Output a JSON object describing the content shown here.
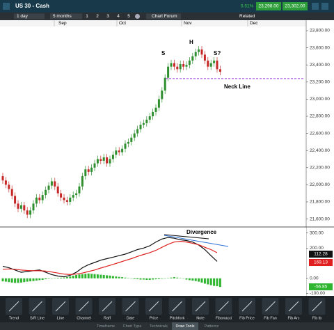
{
  "header": {
    "title": "US 30 - Cash",
    "change": "5.51%",
    "sell": "23,298.00",
    "buy": "23,302.00"
  },
  "toolbar": {
    "interval": "1 day",
    "range": "5 months",
    "layouts": [
      "1",
      "2",
      "3",
      "4",
      "5"
    ],
    "forum": "Chart Forum",
    "related": "Related"
  },
  "months": [
    "Sep",
    "Oct",
    "Nov",
    "Dec"
  ],
  "price_chart": {
    "type": "candlestick",
    "open": [
      22100,
      22050,
      22000,
      21950,
      21870,
      21780,
      21720,
      21760,
      21700,
      21650,
      21700,
      21780,
      21850,
      21820,
      21880,
      21940,
      21990,
      22040,
      21980,
      21900,
      21850,
      21820,
      21800,
      21850,
      21880,
      21900,
      21980,
      22100,
      22180,
      22150,
      22200,
      22250,
      22300,
      22280,
      22320,
      22250,
      22300,
      22350,
      22400,
      22380,
      22420,
      22480,
      22500,
      22550,
      22600,
      22650,
      22700,
      22720,
      22760,
      22800,
      22850,
      22900,
      23000,
      23100,
      23250,
      23380,
      23420,
      23380,
      23350,
      23410,
      23380,
      23400,
      23450,
      23500,
      23550,
      23580,
      23520,
      23450,
      23380,
      23420,
      23450,
      23350
    ],
    "high": [
      22140,
      22090,
      22040,
      21990,
      21910,
      21820,
      21800,
      21800,
      21740,
      21740,
      21820,
      21890,
      21890,
      21920,
      21980,
      22030,
      22080,
      22080,
      22020,
      21940,
      21890,
      21860,
      21890,
      21920,
      21940,
      22020,
      22140,
      22220,
      22220,
      22240,
      22290,
      22340,
      22340,
      22360,
      22360,
      22340,
      22390,
      22440,
      22440,
      22460,
      22520,
      22540,
      22590,
      22640,
      22690,
      22740,
      22760,
      22800,
      22840,
      22890,
      22940,
      23040,
      23140,
      23290,
      23420,
      23460,
      23460,
      23420,
      23450,
      23450,
      23440,
      23490,
      23540,
      23590,
      23620,
      23620,
      23560,
      23490,
      23460,
      23490,
      23490,
      23390
    ],
    "low": [
      22010,
      21960,
      21910,
      21830,
      21740,
      21680,
      21680,
      21660,
      21610,
      21610,
      21660,
      21740,
      21780,
      21780,
      21840,
      21900,
      21950,
      21940,
      21860,
      21810,
      21780,
      21760,
      21760,
      21810,
      21840,
      21860,
      21940,
      22060,
      22110,
      22110,
      22160,
      22210,
      22240,
      22240,
      22210,
      22210,
      22260,
      22310,
      22340,
      22340,
      22380,
      22440,
      22460,
      22510,
      22560,
      22610,
      22660,
      22680,
      22720,
      22760,
      22810,
      22860,
      22960,
      23060,
      23210,
      23340,
      23340,
      23310,
      23310,
      23340,
      23340,
      23360,
      23410,
      23460,
      23510,
      23480,
      23410,
      23340,
      23340,
      23380,
      23310,
      23280
    ],
    "close": [
      22050,
      22000,
      21950,
      21870,
      21780,
      21720,
      21760,
      21700,
      21650,
      21700,
      21780,
      21850,
      21820,
      21880,
      21940,
      21990,
      22040,
      21980,
      21900,
      21850,
      21820,
      21800,
      21850,
      21880,
      21900,
      21980,
      22100,
      22180,
      22150,
      22200,
      22250,
      22300,
      22280,
      22320,
      22250,
      22300,
      22350,
      22400,
      22380,
      22420,
      22480,
      22500,
      22550,
      22600,
      22650,
      22700,
      22720,
      22760,
      22800,
      22850,
      22900,
      23000,
      23100,
      23250,
      23380,
      23420,
      23380,
      23350,
      23410,
      23380,
      23400,
      23450,
      23500,
      23550,
      23580,
      23520,
      23450,
      23380,
      23420,
      23450,
      23350,
      23320
    ],
    "up_color": "#2f8f2f",
    "down_color": "#c62828",
    "ylim": [
      21515,
      23849
    ],
    "yticks": [
      {
        "value": 23800,
        "label": "23,800.00"
      },
      {
        "value": 23600,
        "label": "23,600.00"
      },
      {
        "value": 23400,
        "label": "23,400.00"
      },
      {
        "value": 23200,
        "label": "23,200.00"
      },
      {
        "value": 23000,
        "label": "23,000.00"
      },
      {
        "value": 22800,
        "label": "22,800.00"
      },
      {
        "value": 22600,
        "label": "22,600.00"
      },
      {
        "value": 22400,
        "label": "22,400.00"
      },
      {
        "value": 22200,
        "label": "22,200.00"
      },
      {
        "value": 22000,
        "label": "22,000.00"
      },
      {
        "value": 21800,
        "label": "21,800.00"
      },
      {
        "value": 21600,
        "label": "21,600.00"
      }
    ],
    "neck_level": 23240,
    "neck_color": "#9b30d9",
    "neck_label": "Neck Line",
    "annotations": [
      "S",
      "H",
      "S?"
    ]
  },
  "indicator": {
    "title": "Divergence",
    "ylim": [
      -116,
      335
    ],
    "yticks": [
      {
        "value": 300,
        "label": "300.00"
      },
      {
        "value": 200,
        "label": "200.00"
      },
      {
        "value": 0,
        "label": "0.00"
      },
      {
        "value": -100,
        "label": "-100.00"
      }
    ],
    "series": [
      {
        "color": "#111111",
        "values": [
          80,
          70,
          55,
          40,
          45,
          50,
          55,
          40,
          25,
          15,
          10,
          20,
          40,
          70,
          90,
          105,
          120,
          130,
          140,
          150,
          160,
          175,
          190,
          200,
          215,
          240,
          260,
          270,
          265,
          255,
          250,
          240,
          220,
          190,
          150,
          112.28
        ]
      },
      {
        "color": "#e02020",
        "values": [
          60,
          62,
          60,
          55,
          52,
          50,
          50,
          48,
          42,
          35,
          28,
          25,
          28,
          35,
          45,
          55,
          68,
          80,
          92,
          105,
          118,
          130,
          145,
          158,
          170,
          185,
          205,
          225,
          240,
          245,
          240,
          232,
          222,
          205,
          190,
          169.13
        ]
      }
    ],
    "histogram": {
      "color": "#2fb52f",
      "values": [
        -20,
        -22,
        -25,
        -28,
        -30,
        -30,
        -28,
        -25,
        -22,
        -20,
        -18,
        -15,
        -12,
        -10,
        -6,
        -3,
        -2,
        2,
        3,
        4,
        5,
        8,
        12,
        18,
        22,
        26,
        28,
        30,
        32,
        30,
        28,
        26,
        24,
        22,
        20,
        18,
        15,
        12,
        10,
        8,
        5,
        2,
        -2,
        -5,
        -6,
        -8,
        -8,
        -10,
        -10,
        -8,
        -6,
        -5,
        -3,
        -2,
        2,
        5,
        8,
        5,
        2,
        -2,
        -8,
        -12,
        -15,
        -18,
        -22,
        -28,
        -35,
        -40,
        -45,
        -50,
        -52,
        -56.85
      ]
    }
  },
  "draw_tools": [
    "Trend",
    "S/R Line",
    "Line",
    "Channel",
    "Raff",
    "Date",
    "Price",
    "Pitchfork",
    "Note",
    "Fibonacci",
    "Fib Price",
    "Fib Fan",
    "Fib Arc",
    "Fib tb"
  ],
  "tabs": [
    "Timeframe",
    "Chart Type",
    "Technicals",
    "Draw Tools",
    "Patterns"
  ]
}
